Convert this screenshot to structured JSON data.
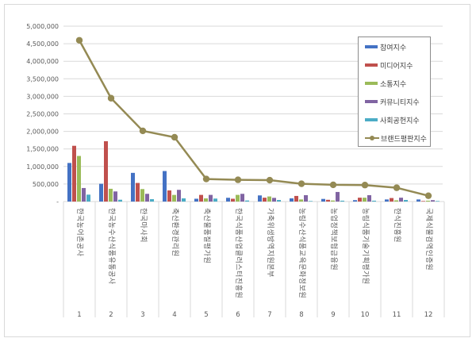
{
  "chart_data": {
    "type": "bar",
    "title": "",
    "xlabel": "",
    "ylabel": "",
    "ylim": [
      0,
      5000000
    ],
    "yticks": [
      "-",
      "500,000",
      "1,000,000",
      "1,500,000",
      "2,000,000",
      "2,500,000",
      "3,000,000",
      "3,500,000",
      "4,000,000",
      "4,500,000",
      "5,000,000"
    ],
    "grid": true,
    "legend_position": "upper-right-inside",
    "category_numbers": [
      "1",
      "2",
      "3",
      "4",
      "5",
      "6",
      "7",
      "8",
      "9",
      "10",
      "11",
      "12"
    ],
    "categories": [
      "한국농어촌공사",
      "한국농수산식품유통공사",
      "한국마사회",
      "축산환경관리원",
      "축산물품질평가원",
      "한국식품산업클러스터진흥원",
      "가축위생방역지원본부",
      "농림수산식품교육문화정보원",
      "농업정책보험금융원",
      "농림식품기술기획평가원",
      "한식진흥원",
      "국제식물검역인증원"
    ],
    "series": [
      {
        "name": "참여지수",
        "type": "bar",
        "color": "#4472C4",
        "values": [
          1100000,
          507000,
          818000,
          870000,
          80000,
          107000,
          175000,
          91000,
          75000,
          40000,
          60000,
          60000
        ]
      },
      {
        "name": "미디어지수",
        "type": "bar",
        "color": "#C0504D",
        "values": [
          1590000,
          1720000,
          530000,
          318000,
          190000,
          80000,
          110000,
          160000,
          50000,
          110000,
          100000,
          15000
        ]
      },
      {
        "name": "소통지수",
        "type": "bar",
        "color": "#9BBB59",
        "values": [
          1300000,
          364000,
          356000,
          189000,
          90000,
          190000,
          145000,
          60000,
          30000,
          110000,
          35000,
          25000
        ]
      },
      {
        "name": "커뮤니티지수",
        "type": "bar",
        "color": "#8064A2",
        "values": [
          386000,
          288000,
          220000,
          334000,
          190000,
          220000,
          105000,
          182000,
          273000,
          182000,
          110000,
          40000
        ]
      },
      {
        "name": "사회공헌지수",
        "type": "bar",
        "color": "#4BACC6",
        "values": [
          197000,
          52000,
          68000,
          91000,
          85000,
          30000,
          45000,
          15000,
          25000,
          25000,
          45000,
          15000
        ]
      },
      {
        "name": "브랜드평판지수",
        "type": "line",
        "color": "#948A54",
        "values": [
          4598000,
          2947000,
          2015000,
          1833000,
          643000,
          620000,
          610000,
          507000,
          477000,
          470000,
          393000,
          166000
        ]
      }
    ]
  },
  "legend": {
    "items": [
      {
        "label": "참여지수",
        "color": "#4472C4",
        "kind": "bar"
      },
      {
        "label": "미디어지수",
        "color": "#C0504D",
        "kind": "bar"
      },
      {
        "label": "소통지수",
        "color": "#9BBB59",
        "kind": "bar"
      },
      {
        "label": "커뮤니티지수",
        "color": "#8064A2",
        "kind": "bar"
      },
      {
        "label": "사회공헌지수",
        "color": "#4BACC6",
        "kind": "bar"
      },
      {
        "label": "브랜드평판지수",
        "color": "#948A54",
        "kind": "line"
      }
    ]
  },
  "style": {
    "gridline_color": "#d9d9d9",
    "axis_text_color": "#595959"
  }
}
